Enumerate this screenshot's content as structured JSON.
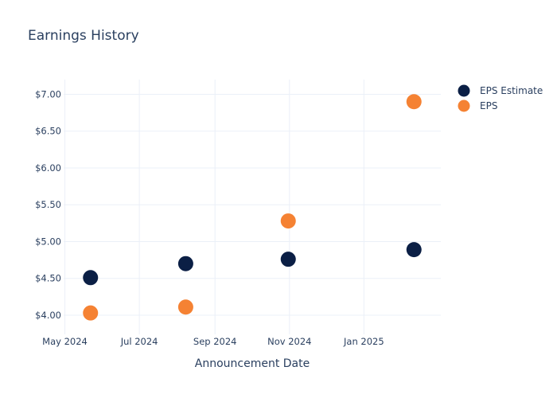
{
  "chart_data": {
    "type": "scatter",
    "title": "Earnings History",
    "xlabel": "Announcement Date",
    "ylabel": "",
    "x_ticks": [
      {
        "date": "2024-05-01",
        "label": "May 2024"
      },
      {
        "date": "2024-07-01",
        "label": "Jul 2024"
      },
      {
        "date": "2024-09-01",
        "label": "Sep 2024"
      },
      {
        "date": "2024-11-01",
        "label": "Nov 2024"
      },
      {
        "date": "2025-01-01",
        "label": "Jan 2025"
      }
    ],
    "y_ticks": [
      {
        "value": 4.0,
        "label": "$4.00"
      },
      {
        "value": 4.5,
        "label": "$4.50"
      },
      {
        "value": 5.0,
        "label": "$5.00"
      },
      {
        "value": 5.5,
        "label": "$5.50"
      },
      {
        "value": 6.0,
        "label": "$6.00"
      },
      {
        "value": 6.5,
        "label": "$6.50"
      },
      {
        "value": 7.0,
        "label": "$7.00"
      }
    ],
    "xlim": [
      "2024-04-30",
      "2025-03-05"
    ],
    "ylim": [
      3.74,
      7.2
    ],
    "grid": true,
    "legend_position": "top-right",
    "series": [
      {
        "name": "EPS Estimate",
        "color": "#0b1f45",
        "points": [
          {
            "x": "2024-05-22",
            "y": 4.51
          },
          {
            "x": "2024-08-08",
            "y": 4.7
          },
          {
            "x": "2024-10-31",
            "y": 4.76
          },
          {
            "x": "2025-02-11",
            "y": 4.89
          }
        ]
      },
      {
        "name": "EPS",
        "color": "#f58233",
        "points": [
          {
            "x": "2024-05-22",
            "y": 4.03
          },
          {
            "x": "2024-08-08",
            "y": 4.11
          },
          {
            "x": "2024-10-31",
            "y": 5.28
          },
          {
            "x": "2025-02-11",
            "y": 6.9
          }
        ]
      }
    ]
  }
}
